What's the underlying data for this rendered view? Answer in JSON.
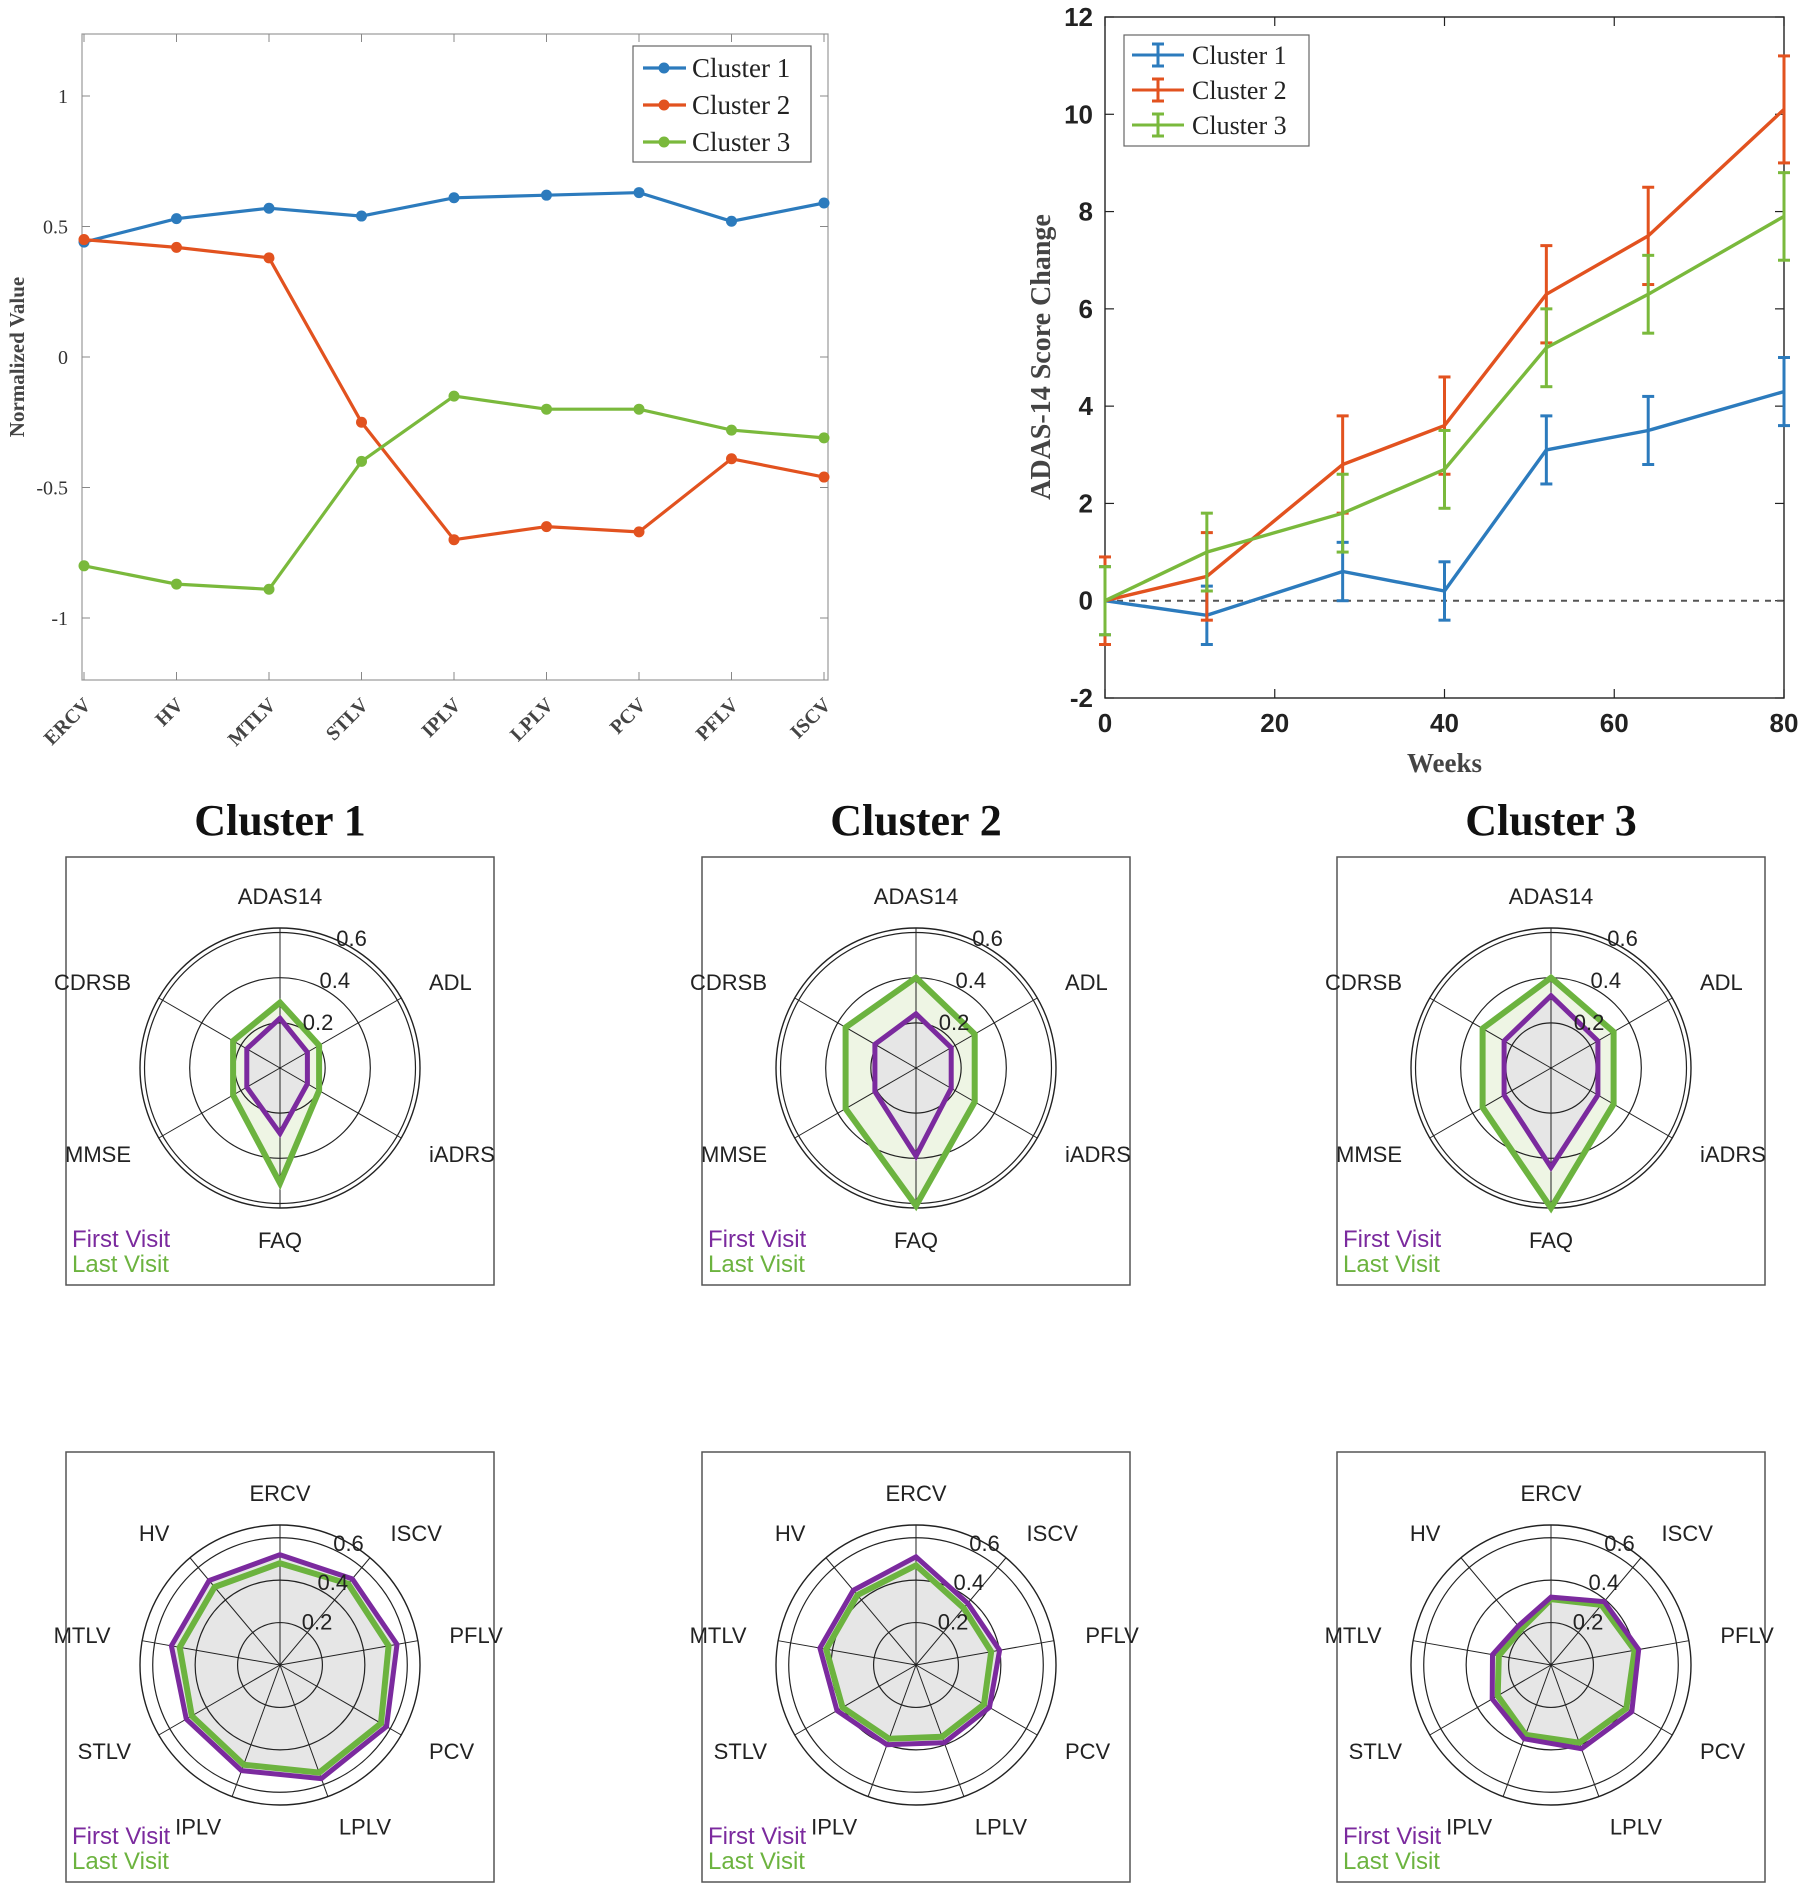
{
  "colors": {
    "cluster1": "#2c7bbd",
    "cluster2": "#e2521f",
    "cluster3": "#7ab93c",
    "first_visit": "#7b2a9e",
    "last_visit": "#6cb33f",
    "fill_first": "#e6e6e6",
    "fill_last": "#eef5e4"
  },
  "chart_data": [
    {
      "id": "normalized-volumes",
      "type": "line",
      "xlabel": "",
      "ylabel": "Normalized Value",
      "categories": [
        "ERCV",
        "HV",
        "MTLV",
        "STLV",
        "IPLV",
        "LPLV",
        "PCV",
        "PFLV",
        "ISCV"
      ],
      "ylim": [
        -1.25,
        1.25
      ],
      "yticks": [
        -1,
        -0.5,
        0,
        0.5,
        1
      ],
      "ytick_labels": [
        "-1",
        "-0.5",
        "0",
        "0.5",
        "1"
      ],
      "legend": "top-right",
      "series": [
        {
          "name": "Cluster 1",
          "values": [
            0.44,
            0.53,
            0.57,
            0.54,
            0.61,
            0.62,
            0.63,
            0.52,
            0.59
          ]
        },
        {
          "name": "Cluster 2",
          "values": [
            0.45,
            0.42,
            0.38,
            -0.25,
            -0.7,
            -0.65,
            -0.67,
            -0.39,
            -0.46
          ]
        },
        {
          "name": "Cluster 3",
          "values": [
            -0.8,
            -0.87,
            -0.89,
            -0.4,
            -0.15,
            -0.2,
            -0.2,
            -0.28,
            -0.31
          ]
        }
      ]
    },
    {
      "id": "adas-change",
      "type": "line",
      "xlabel": "Weeks",
      "ylabel": "ADAS-14 Score Change",
      "x": [
        0,
        12,
        28,
        40,
        52,
        64,
        80
      ],
      "xlim": [
        0,
        80
      ],
      "ylim": [
        -2,
        12
      ],
      "xticks": [
        0,
        20,
        40,
        60,
        80
      ],
      "xtick_labels": [
        "0",
        "20",
        "40",
        "60",
        "80"
      ],
      "yticks": [
        -2,
        0,
        2,
        4,
        6,
        8,
        10,
        12
      ],
      "ytick_labels": [
        "-2",
        "0",
        "2",
        "4",
        "6",
        "8",
        "10",
        "12"
      ],
      "legend": "top-left",
      "series": [
        {
          "name": "Cluster 1",
          "values": [
            0,
            -0.3,
            0.6,
            0.2,
            3.1,
            3.5,
            4.3
          ],
          "error": [
            0.7,
            0.6,
            0.6,
            0.6,
            0.7,
            0.7,
            0.7
          ]
        },
        {
          "name": "Cluster 2",
          "values": [
            0,
            0.5,
            2.8,
            3.6,
            6.3,
            7.5,
            10.1
          ],
          "error": [
            0.9,
            0.9,
            1.0,
            1.0,
            1.0,
            1.0,
            1.1
          ]
        },
        {
          "name": "Cluster 3",
          "values": [
            0,
            1.0,
            1.8,
            2.7,
            5.2,
            6.3,
            7.9
          ],
          "error": [
            0.7,
            0.8,
            0.8,
            0.8,
            0.8,
            0.8,
            0.9
          ]
        }
      ]
    },
    {
      "id": "radar-cognitive",
      "type": "radar",
      "axes": [
        "ADAS14",
        "ADL",
        "iADRS",
        "FAQ",
        "MMSE",
        "CDRSB"
      ],
      "rticks": [
        0.2,
        0.4,
        0.6
      ],
      "rtick_labels": [
        "0.2",
        "0.4",
        "0.6"
      ],
      "rmax": 0.62,
      "legend": [
        "First Visit",
        "Last Visit"
      ],
      "panels": [
        {
          "title": "Cluster 1",
          "first": [
            0.22,
            0.14,
            0.14,
            0.29,
            0.17,
            0.17
          ],
          "last": [
            0.29,
            0.2,
            0.2,
            0.51,
            0.24,
            0.24
          ]
        },
        {
          "title": "Cluster 2",
          "first": [
            0.24,
            0.18,
            0.18,
            0.39,
            0.21,
            0.21
          ],
          "last": [
            0.4,
            0.3,
            0.3,
            0.61,
            0.36,
            0.36
          ]
        },
        {
          "title": "Cluster 3",
          "first": [
            0.32,
            0.24,
            0.24,
            0.44,
            0.24,
            0.24
          ],
          "last": [
            0.4,
            0.32,
            0.32,
            0.62,
            0.35,
            0.35
          ]
        }
      ]
    },
    {
      "id": "radar-volumes",
      "type": "radar",
      "axes": [
        "ERCV",
        "ISCV",
        "PFLV",
        "PCV",
        "LPLV",
        "IPLV",
        "STLV",
        "MTLV",
        "HV"
      ],
      "rticks": [
        0.2,
        0.4,
        0.6
      ],
      "rtick_labels": [
        "0.2",
        "0.4",
        "0.6"
      ],
      "rmax": 0.66,
      "legend": [
        "First Visit",
        "Last Visit"
      ],
      "panels": [
        {
          "title": "Cluster 1",
          "first": [
            0.52,
            0.53,
            0.56,
            0.58,
            0.57,
            0.53,
            0.51,
            0.52,
            0.52
          ],
          "last": [
            0.48,
            0.5,
            0.52,
            0.55,
            0.54,
            0.5,
            0.48,
            0.48,
            0.48
          ]
        },
        {
          "title": "Cluster 2",
          "first": [
            0.51,
            0.38,
            0.4,
            0.4,
            0.39,
            0.4,
            0.43,
            0.46,
            0.46
          ],
          "last": [
            0.47,
            0.35,
            0.36,
            0.37,
            0.36,
            0.37,
            0.4,
            0.43,
            0.43
          ]
        },
        {
          "title": "Cluster 3",
          "first": [
            0.32,
            0.39,
            0.42,
            0.44,
            0.42,
            0.37,
            0.32,
            0.28,
            0.24
          ],
          "last": [
            0.31,
            0.37,
            0.4,
            0.41,
            0.39,
            0.35,
            0.29,
            0.25,
            0.22
          ]
        }
      ]
    }
  ]
}
